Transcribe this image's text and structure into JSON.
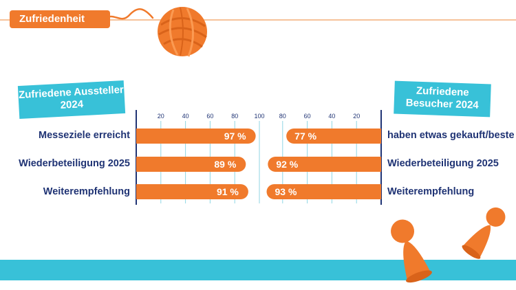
{
  "header": {
    "tag_label": "Zufriedenheit"
  },
  "colors": {
    "orange": "#f07a2c",
    "light_orange": "#f6c29a",
    "cyan": "#38c1d8",
    "navy": "#1f3374",
    "grid": "#8fd6e3"
  },
  "icons": [
    "yarn-ball-icon",
    "game-pawn-icon"
  ],
  "chart_data": [
    {
      "type": "bar",
      "orientation": "horizontal",
      "title": "Zufriedene Aussteller 2024",
      "categories": [
        "Messeziele erreicht",
        "Wiederbeteiligung 2025",
        "Weiterempfehlung"
      ],
      "values": [
        97,
        89,
        91
      ],
      "value_labels": [
        "97 %",
        "89 %",
        "91 %"
      ],
      "ticks": [
        "20",
        "40",
        "60",
        "80",
        "100"
      ],
      "tick_values": [
        20,
        40,
        60,
        80,
        100
      ],
      "xlim": [
        0,
        100
      ]
    },
    {
      "type": "bar",
      "orientation": "horizontal",
      "direction": "reversed",
      "title": "Zufriedene Besucher 2024",
      "categories": [
        "haben etwas gekauft/beste",
        "Wiederbeteiligung 2025",
        "Weiterempfehlung"
      ],
      "values": [
        77,
        92,
        93
      ],
      "value_labels": [
        "77 %",
        "92 %",
        "93 %"
      ],
      "ticks": [
        "80",
        "60",
        "40",
        "20"
      ],
      "tick_values": [
        80,
        60,
        40,
        20
      ],
      "xlim": [
        0,
        100
      ]
    }
  ]
}
